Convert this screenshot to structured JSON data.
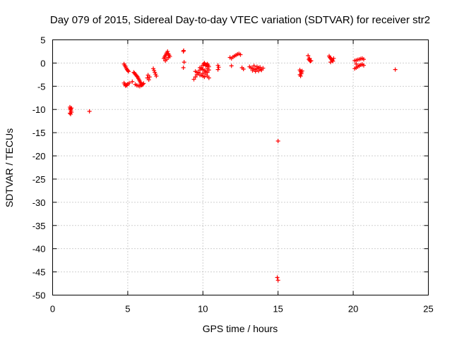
{
  "chart_data": {
    "type": "scatter",
    "title": "Day 079 of 2015, Sidereal Day-to-day VTEC variation (SDTVAR) for receiver str2",
    "xlabel": "GPS time / hours",
    "ylabel": "SDTVAR / TECUs",
    "xlim": [
      0,
      25
    ],
    "ylim": [
      -50,
      5
    ],
    "xticks": [
      0,
      5,
      10,
      15,
      20,
      25
    ],
    "yticks": [
      5,
      0,
      -5,
      -10,
      -15,
      -20,
      -25,
      -30,
      -35,
      -40,
      -45,
      -50
    ],
    "grid": true,
    "marker": "plus",
    "series_color": "#ff0000",
    "series": [
      {
        "name": "SDTVAR",
        "x": [
          1.15,
          1.18,
          1.2,
          1.22,
          1.25,
          1.15,
          1.2,
          1.25,
          2.45,
          4.75,
          4.8,
          4.85,
          4.9,
          4.95,
          5.0,
          5.05,
          4.75,
          4.8,
          4.85,
          4.9,
          4.95,
          5.0,
          5.1,
          5.3,
          5.4,
          5.45,
          5.5,
          5.55,
          5.6,
          5.65,
          5.7,
          5.75,
          5.8,
          5.85,
          5.9,
          5.95,
          6.0,
          6.05,
          5.5,
          5.6,
          5.7,
          5.8,
          5.9,
          6.3,
          6.35,
          6.4,
          6.45,
          6.7,
          6.75,
          6.8,
          6.85,
          6.9,
          7.4,
          7.45,
          7.5,
          7.55,
          7.6,
          7.65,
          7.7,
          7.75,
          7.8,
          7.5,
          7.6,
          7.7,
          8.7,
          8.72,
          8.75,
          8.7,
          9.4,
          9.5,
          9.6,
          9.7,
          9.8,
          9.9,
          10.0,
          10.05,
          10.1,
          10.15,
          10.2,
          10.25,
          10.3,
          10.35,
          10.4,
          9.8,
          9.9,
          10.0,
          10.1,
          10.2,
          10.3,
          10.4,
          9.9,
          10.0,
          10.1,
          10.2,
          10.3,
          10.4,
          9.5,
          9.6,
          9.7,
          9.8,
          10.0,
          10.2,
          10.3,
          11.0,
          11.05,
          11.0,
          11.8,
          11.9,
          12.0,
          12.1,
          12.2,
          12.3,
          12.4,
          12.5,
          11.9,
          12.6,
          12.7,
          13.1,
          13.2,
          13.3,
          13.4,
          13.5,
          13.6,
          13.7,
          13.8,
          13.9,
          14.0,
          13.3,
          13.5,
          13.7,
          13.9,
          13.4,
          13.6,
          13.8,
          15.0,
          14.95,
          15.0,
          16.45,
          16.5,
          16.55,
          16.6,
          16.45,
          16.5,
          16.55,
          17.0,
          17.05,
          17.1,
          17.15,
          17.2,
          17.1,
          18.4,
          18.45,
          18.5,
          18.55,
          18.6,
          18.65,
          18.7,
          18.5,
          18.6,
          20.1,
          20.2,
          20.3,
          20.4,
          20.5,
          20.6,
          20.7,
          20.1,
          20.2,
          20.3,
          20.4,
          20.5,
          20.6,
          20.7,
          20.2,
          20.4,
          20.6,
          22.8
        ],
        "y": [
          -9.5,
          -9.8,
          -10.0,
          -10.3,
          -9.7,
          -10.8,
          -11.0,
          -10.6,
          -10.4,
          -0.2,
          -0.5,
          -0.8,
          -1.1,
          -1.4,
          -1.6,
          -1.8,
          -4.3,
          -4.6,
          -4.9,
          -4.7,
          -4.8,
          -4.5,
          -4.3,
          -4.0,
          -2.0,
          -2.2,
          -2.4,
          -2.6,
          -2.8,
          -3.0,
          -3.3,
          -3.6,
          -3.9,
          -4.2,
          -4.5,
          -4.7,
          -4.6,
          -4.4,
          -4.6,
          -4.8,
          -4.9,
          -5.0,
          -4.8,
          -3.2,
          -2.6,
          -3.6,
          -3.0,
          -1.2,
          -1.6,
          -2.0,
          -2.4,
          -2.8,
          1.0,
          1.3,
          1.6,
          1.9,
          2.2,
          2.5,
          2.0,
          1.7,
          1.4,
          0.5,
          0.8,
          1.2,
          2.5,
          2.7,
          0.2,
          -1.0,
          -3.5,
          -3.0,
          -2.5,
          -2.0,
          -1.5,
          -1.0,
          -0.5,
          -0.2,
          0.0,
          -0.3,
          -0.6,
          -0.4,
          -0.2,
          -0.5,
          -0.8,
          -1.0,
          -1.2,
          -1.4,
          -1.6,
          -1.8,
          -2.0,
          -1.5,
          -2.6,
          -2.8,
          -3.0,
          -2.4,
          -2.8,
          -3.2,
          -1.8,
          -2.0,
          -2.2,
          -2.6,
          -2.2,
          -2.0,
          -1.2,
          -0.5,
          -0.9,
          -1.4,
          1.2,
          1.0,
          1.3,
          1.5,
          1.7,
          1.9,
          2.0,
          1.8,
          -0.6,
          -1.0,
          -1.3,
          -0.8,
          -1.0,
          -1.2,
          -1.3,
          -1.4,
          -1.2,
          -1.0,
          -1.3,
          -1.5,
          -1.1,
          -1.6,
          -1.8,
          -1.7,
          -1.5,
          -0.6,
          -0.8,
          -0.9,
          -16.8,
          -46.2,
          -46.8,
          -1.5,
          -1.8,
          -2.0,
          -1.7,
          -2.5,
          -2.8,
          -2.3,
          1.6,
          0.8,
          0.6,
          0.4,
          0.5,
          1.0,
          1.5,
          1.2,
          1.0,
          0.8,
          0.6,
          0.4,
          1.0,
          0.2,
          0.7,
          -1.2,
          -1.0,
          -0.8,
          -0.6,
          -0.4,
          -0.3,
          -0.5,
          0.5,
          0.6,
          0.7,
          0.8,
          0.9,
          1.0,
          0.8,
          -0.2,
          -0.5,
          -0.3,
          -1.4
        ]
      }
    ]
  }
}
